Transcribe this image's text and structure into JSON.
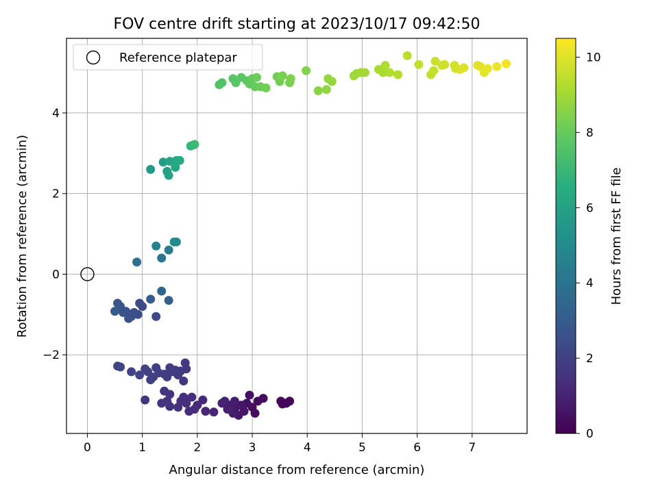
{
  "chart_data": {
    "type": "scatter",
    "title": "FOV centre drift starting at 2023/10/17 09:42:50",
    "xlabel": "Angular distance from reference (arcmin)",
    "ylabel": "Rotation from reference (arcmin)",
    "colorbar_label": "Hours from first FF file",
    "xlim": [
      -0.38,
      8.0
    ],
    "ylim": [
      -3.95,
      5.85
    ],
    "clim": [
      0,
      10.5
    ],
    "x_ticks": [
      0,
      1,
      2,
      3,
      4,
      5,
      6,
      7
    ],
    "x_tick_labels": [
      "0",
      "1",
      "2",
      "3",
      "4",
      "5",
      "6",
      "7"
    ],
    "y_ticks": [
      -2,
      0,
      2,
      4
    ],
    "y_tick_labels": [
      "−2",
      "0",
      "2",
      "4"
    ],
    "colorbar_ticks": [
      0,
      2,
      4,
      6,
      8,
      10
    ],
    "colorbar_tick_labels": [
      "0",
      "2",
      "4",
      "6",
      "8",
      "10"
    ],
    "colormap": "viridis",
    "grid": true,
    "legend": {
      "placement": "top-left",
      "entries": [
        "Reference platepar"
      ]
    },
    "reference_point": {
      "x": 0,
      "y": 0,
      "label": "Reference platepar"
    },
    "points": [
      {
        "x": 3.55,
        "y": -3.22,
        "t": 0.1
      },
      {
        "x": 3.68,
        "y": -3.15,
        "t": 0.1
      },
      {
        "x": 3.52,
        "y": -3.15,
        "t": 0.2
      },
      {
        "x": 3.62,
        "y": -3.2,
        "t": 0.2
      },
      {
        "x": 3.2,
        "y": -3.08,
        "t": 0.3
      },
      {
        "x": 3.1,
        "y": -3.15,
        "t": 0.3
      },
      {
        "x": 3.0,
        "y": -3.3,
        "t": 0.4
      },
      {
        "x": 3.05,
        "y": -3.45,
        "t": 0.4
      },
      {
        "x": 2.95,
        "y": -3.0,
        "t": 0.5
      },
      {
        "x": 2.9,
        "y": -3.2,
        "t": 0.5
      },
      {
        "x": 2.85,
        "y": -3.4,
        "t": 0.6
      },
      {
        "x": 2.8,
        "y": -3.25,
        "t": 0.6
      },
      {
        "x": 2.75,
        "y": -3.5,
        "t": 0.7
      },
      {
        "x": 2.7,
        "y": -3.3,
        "t": 0.7
      },
      {
        "x": 2.65,
        "y": -3.45,
        "t": 0.8
      },
      {
        "x": 2.68,
        "y": -3.15,
        "t": 0.8
      },
      {
        "x": 2.6,
        "y": -3.25,
        "t": 0.9
      },
      {
        "x": 2.55,
        "y": -3.35,
        "t": 0.9
      },
      {
        "x": 2.5,
        "y": -3.15,
        "t": 1.0
      },
      {
        "x": 2.45,
        "y": -3.2,
        "t": 1.0
      },
      {
        "x": 2.3,
        "y": -3.42,
        "t": 1.1
      },
      {
        "x": 2.15,
        "y": -3.4,
        "t": 1.1
      },
      {
        "x": 2.1,
        "y": -3.12,
        "t": 1.2
      },
      {
        "x": 2.0,
        "y": -3.25,
        "t": 1.2
      },
      {
        "x": 1.95,
        "y": -3.35,
        "t": 1.3
      },
      {
        "x": 1.9,
        "y": -3.05,
        "t": 1.3
      },
      {
        "x": 1.85,
        "y": -3.4,
        "t": 1.35
      },
      {
        "x": 1.8,
        "y": -3.2,
        "t": 1.4
      },
      {
        "x": 1.75,
        "y": -3.05,
        "t": 1.4
      },
      {
        "x": 1.7,
        "y": -3.15,
        "t": 1.45
      },
      {
        "x": 1.65,
        "y": -3.3,
        "t": 1.5
      },
      {
        "x": 1.5,
        "y": -3.28,
        "t": 1.5
      },
      {
        "x": 1.45,
        "y": -3.15,
        "t": 1.55
      },
      {
        "x": 1.5,
        "y": -2.98,
        "t": 1.55
      },
      {
        "x": 1.4,
        "y": -2.9,
        "t": 1.6
      },
      {
        "x": 1.35,
        "y": -3.2,
        "t": 1.6
      },
      {
        "x": 1.05,
        "y": -3.12,
        "t": 1.65
      },
      {
        "x": 1.75,
        "y": -2.65,
        "t": 1.7
      },
      {
        "x": 1.8,
        "y": -2.35,
        "t": 1.7
      },
      {
        "x": 1.78,
        "y": -2.2,
        "t": 1.75
      },
      {
        "x": 1.7,
        "y": -2.4,
        "t": 1.75
      },
      {
        "x": 1.65,
        "y": -2.5,
        "t": 1.8
      },
      {
        "x": 1.6,
        "y": -2.38,
        "t": 1.8
      },
      {
        "x": 1.55,
        "y": -2.42,
        "t": 1.85
      },
      {
        "x": 1.5,
        "y": -2.32,
        "t": 1.85
      },
      {
        "x": 1.45,
        "y": -2.55,
        "t": 1.9
      },
      {
        "x": 1.4,
        "y": -2.48,
        "t": 1.9
      },
      {
        "x": 1.3,
        "y": -2.45,
        "t": 1.95
      },
      {
        "x": 1.25,
        "y": -2.32,
        "t": 1.95
      },
      {
        "x": 1.2,
        "y": -2.55,
        "t": 2.0
      },
      {
        "x": 1.15,
        "y": -2.62,
        "t": 2.0
      },
      {
        "x": 1.1,
        "y": -2.42,
        "t": 2.05
      },
      {
        "x": 1.05,
        "y": -2.35,
        "t": 2.05
      },
      {
        "x": 0.95,
        "y": -2.5,
        "t": 2.1
      },
      {
        "x": 0.8,
        "y": -2.42,
        "t": 2.1
      },
      {
        "x": 0.6,
        "y": -2.3,
        "t": 2.15
      },
      {
        "x": 0.55,
        "y": -2.28,
        "t": 2.2
      },
      {
        "x": 1.25,
        "y": -1.05,
        "t": 2.3
      },
      {
        "x": 1.0,
        "y": -0.8,
        "t": 2.35
      },
      {
        "x": 0.95,
        "y": -0.72,
        "t": 2.4
      },
      {
        "x": 0.92,
        "y": -1.0,
        "t": 2.45
      },
      {
        "x": 0.85,
        "y": -0.95,
        "t": 2.5
      },
      {
        "x": 0.8,
        "y": -1.05,
        "t": 2.55
      },
      {
        "x": 0.75,
        "y": -1.1,
        "t": 2.6
      },
      {
        "x": 0.7,
        "y": -0.92,
        "t": 2.65
      },
      {
        "x": 0.65,
        "y": -0.95,
        "t": 2.7
      },
      {
        "x": 0.6,
        "y": -0.8,
        "t": 2.75
      },
      {
        "x": 0.55,
        "y": -0.72,
        "t": 2.8
      },
      {
        "x": 0.5,
        "y": -0.92,
        "t": 2.9
      },
      {
        "x": 1.15,
        "y": -0.62,
        "t": 3.0
      },
      {
        "x": 1.48,
        "y": -0.65,
        "t": 3.2
      },
      {
        "x": 1.35,
        "y": -0.42,
        "t": 3.4
      },
      {
        "x": 0.9,
        "y": 0.3,
        "t": 3.8
      },
      {
        "x": 1.35,
        "y": 0.4,
        "t": 4.1
      },
      {
        "x": 1.48,
        "y": 0.6,
        "t": 4.4
      },
      {
        "x": 1.25,
        "y": 0.7,
        "t": 4.6
      },
      {
        "x": 1.58,
        "y": 0.8,
        "t": 4.9
      },
      {
        "x": 1.62,
        "y": 0.8,
        "t": 5.1
      },
      {
        "x": 1.15,
        "y": 2.6,
        "t": 5.6
      },
      {
        "x": 1.38,
        "y": 2.78,
        "t": 5.8
      },
      {
        "x": 1.45,
        "y": 2.55,
        "t": 5.9
      },
      {
        "x": 1.48,
        "y": 2.45,
        "t": 6.0
      },
      {
        "x": 1.5,
        "y": 2.8,
        "t": 6.1
      },
      {
        "x": 1.6,
        "y": 2.65,
        "t": 6.2
      },
      {
        "x": 1.62,
        "y": 2.82,
        "t": 6.3
      },
      {
        "x": 1.68,
        "y": 2.82,
        "t": 6.4
      },
      {
        "x": 1.88,
        "y": 3.18,
        "t": 6.8
      },
      {
        "x": 1.92,
        "y": 3.2,
        "t": 7.0
      },
      {
        "x": 1.95,
        "y": 3.22,
        "t": 7.1
      },
      {
        "x": 2.4,
        "y": 4.7,
        "t": 7.5
      },
      {
        "x": 2.45,
        "y": 4.75,
        "t": 7.6
      },
      {
        "x": 2.65,
        "y": 4.85,
        "t": 7.7
      },
      {
        "x": 2.7,
        "y": 4.75,
        "t": 7.75
      },
      {
        "x": 2.8,
        "y": 4.88,
        "t": 7.8
      },
      {
        "x": 2.9,
        "y": 4.8,
        "t": 7.85
      },
      {
        "x": 2.95,
        "y": 4.72,
        "t": 7.9
      },
      {
        "x": 3.0,
        "y": 4.85,
        "t": 7.95
      },
      {
        "x": 3.05,
        "y": 4.65,
        "t": 8.0
      },
      {
        "x": 3.08,
        "y": 4.88,
        "t": 8.05
      },
      {
        "x": 3.15,
        "y": 4.65,
        "t": 8.1
      },
      {
        "x": 3.25,
        "y": 4.62,
        "t": 8.15
      },
      {
        "x": 3.45,
        "y": 4.9,
        "t": 8.2
      },
      {
        "x": 3.5,
        "y": 4.78,
        "t": 8.25
      },
      {
        "x": 3.55,
        "y": 4.92,
        "t": 8.3
      },
      {
        "x": 3.68,
        "y": 4.75,
        "t": 8.35
      },
      {
        "x": 3.7,
        "y": 4.85,
        "t": 8.4
      },
      {
        "x": 3.98,
        "y": 5.05,
        "t": 8.5
      },
      {
        "x": 4.2,
        "y": 4.55,
        "t": 8.6
      },
      {
        "x": 4.35,
        "y": 4.58,
        "t": 8.7
      },
      {
        "x": 4.38,
        "y": 4.85,
        "t": 8.75
      },
      {
        "x": 4.45,
        "y": 4.78,
        "t": 8.8
      },
      {
        "x": 4.85,
        "y": 4.92,
        "t": 8.9
      },
      {
        "x": 4.9,
        "y": 4.98,
        "t": 8.95
      },
      {
        "x": 4.98,
        "y": 5.0,
        "t": 9.0
      },
      {
        "x": 5.05,
        "y": 5.0,
        "t": 9.05
      },
      {
        "x": 5.3,
        "y": 5.08,
        "t": 9.1
      },
      {
        "x": 5.38,
        "y": 5.0,
        "t": 9.15
      },
      {
        "x": 5.42,
        "y": 5.18,
        "t": 9.2
      },
      {
        "x": 5.5,
        "y": 5.0,
        "t": 9.25
      },
      {
        "x": 5.65,
        "y": 4.95,
        "t": 9.3
      },
      {
        "x": 5.82,
        "y": 5.42,
        "t": 9.4
      },
      {
        "x": 6.03,
        "y": 5.2,
        "t": 9.5
      },
      {
        "x": 6.25,
        "y": 4.95,
        "t": 9.55
      },
      {
        "x": 6.3,
        "y": 5.05,
        "t": 9.6
      },
      {
        "x": 6.33,
        "y": 5.28,
        "t": 9.65
      },
      {
        "x": 6.45,
        "y": 5.18,
        "t": 9.7
      },
      {
        "x": 6.5,
        "y": 5.2,
        "t": 9.75
      },
      {
        "x": 6.68,
        "y": 5.18,
        "t": 9.8
      },
      {
        "x": 6.7,
        "y": 5.1,
        "t": 9.85
      },
      {
        "x": 6.78,
        "y": 5.08,
        "t": 9.9
      },
      {
        "x": 6.85,
        "y": 5.12,
        "t": 9.95
      },
      {
        "x": 7.1,
        "y": 5.18,
        "t": 10.0
      },
      {
        "x": 7.15,
        "y": 5.15,
        "t": 10.05
      },
      {
        "x": 7.22,
        "y": 5.0,
        "t": 10.1
      },
      {
        "x": 7.28,
        "y": 5.1,
        "t": 10.15
      },
      {
        "x": 7.45,
        "y": 5.15,
        "t": 10.2
      },
      {
        "x": 7.62,
        "y": 5.22,
        "t": 10.3
      }
    ]
  }
}
